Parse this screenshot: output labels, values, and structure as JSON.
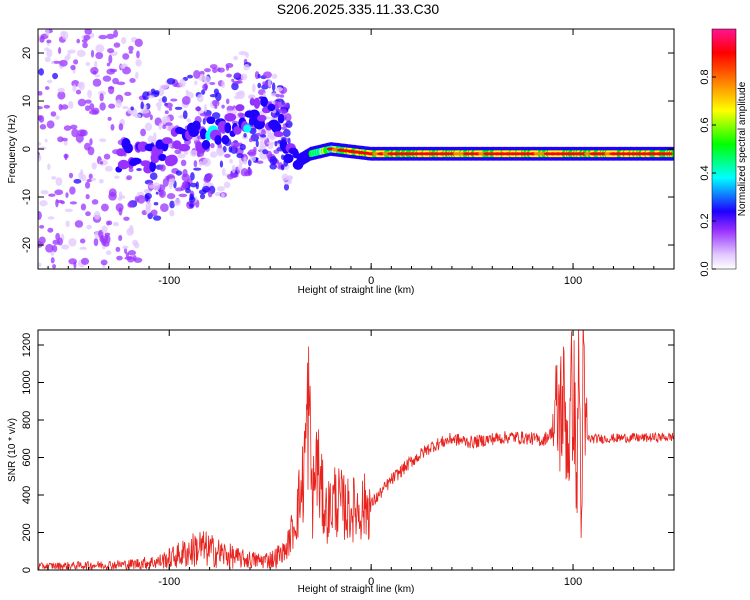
{
  "figure_title": "S206.2025.335.11.33.C30",
  "chart_data": [
    {
      "type": "heatmap",
      "title": "S206.2025.335.11.33.C30",
      "xlabel": "Height of straight line (km)",
      "ylabel": "Frequency (Hz)",
      "xlim": [
        -165,
        150
      ],
      "ylim": [
        -25,
        25
      ],
      "xticks": [
        -100,
        0,
        100
      ],
      "yticks": [
        -20,
        -10,
        0,
        10,
        20
      ],
      "colorbar": {
        "label": "Normalized spectral amplitude",
        "range": [
          0,
          1
        ],
        "ticks": [
          0.0,
          0.2,
          0.4,
          0.6,
          0.8
        ],
        "colors": [
          "#ffffff",
          "#e2c8ff",
          "#9932ff",
          "#1f00ff",
          "#00ffff",
          "#00ff00",
          "#ffff00",
          "#ff8000",
          "#ff0000",
          "#ff1493"
        ]
      },
      "ridge": [
        {
          "x": -165,
          "y": 0
        },
        {
          "x": -115,
          "y": -2
        },
        {
          "x": -105,
          "y": -1
        },
        {
          "x": -90,
          "y": 2
        },
        {
          "x": -75,
          "y": 4
        },
        {
          "x": -60,
          "y": 7
        },
        {
          "x": -50,
          "y": 7
        },
        {
          "x": -42,
          "y": 2
        },
        {
          "x": -38,
          "y": -3
        },
        {
          "x": -30,
          "y": -1
        },
        {
          "x": -20,
          "y": 0
        },
        {
          "x": 0,
          "y": -1
        },
        {
          "x": 150,
          "y": -1
        }
      ]
    },
    {
      "type": "line",
      "xlabel": "Height of straight line (km)",
      "ylabel": "SNR (10 * v/v)",
      "xlim": [
        -165,
        150
      ],
      "ylim": [
        0,
        1280
      ],
      "xticks": [
        -100,
        0,
        100
      ],
      "yticks": [
        0,
        200,
        400,
        600,
        800,
        1000,
        1200
      ],
      "color": "#e8221c",
      "series": [
        {
          "name": "SNR",
          "x": [
            -165,
            -140,
            -120,
            -105,
            -95,
            -85,
            -75,
            -65,
            -55,
            -48,
            -42,
            -38,
            -34,
            -31,
            -29,
            -27,
            -25,
            -22,
            -18,
            -12,
            -5,
            0,
            10,
            20,
            30,
            40,
            50,
            60,
            70,
            80,
            85,
            90,
            95,
            98,
            100,
            102,
            103,
            104,
            105,
            106,
            108,
            115,
            125,
            135,
            150
          ],
          "values": [
            20,
            25,
            30,
            45,
            80,
            120,
            90,
            60,
            50,
            60,
            110,
            250,
            450,
            880,
            350,
            600,
            420,
            300,
            380,
            320,
            330,
            350,
            480,
            580,
            660,
            700,
            680,
            700,
            710,
            700,
            690,
            740,
            900,
            650,
            1050,
            400,
            1280,
            150,
            1000,
            710,
            700,
            700,
            705,
            705,
            710
          ]
        }
      ]
    }
  ]
}
